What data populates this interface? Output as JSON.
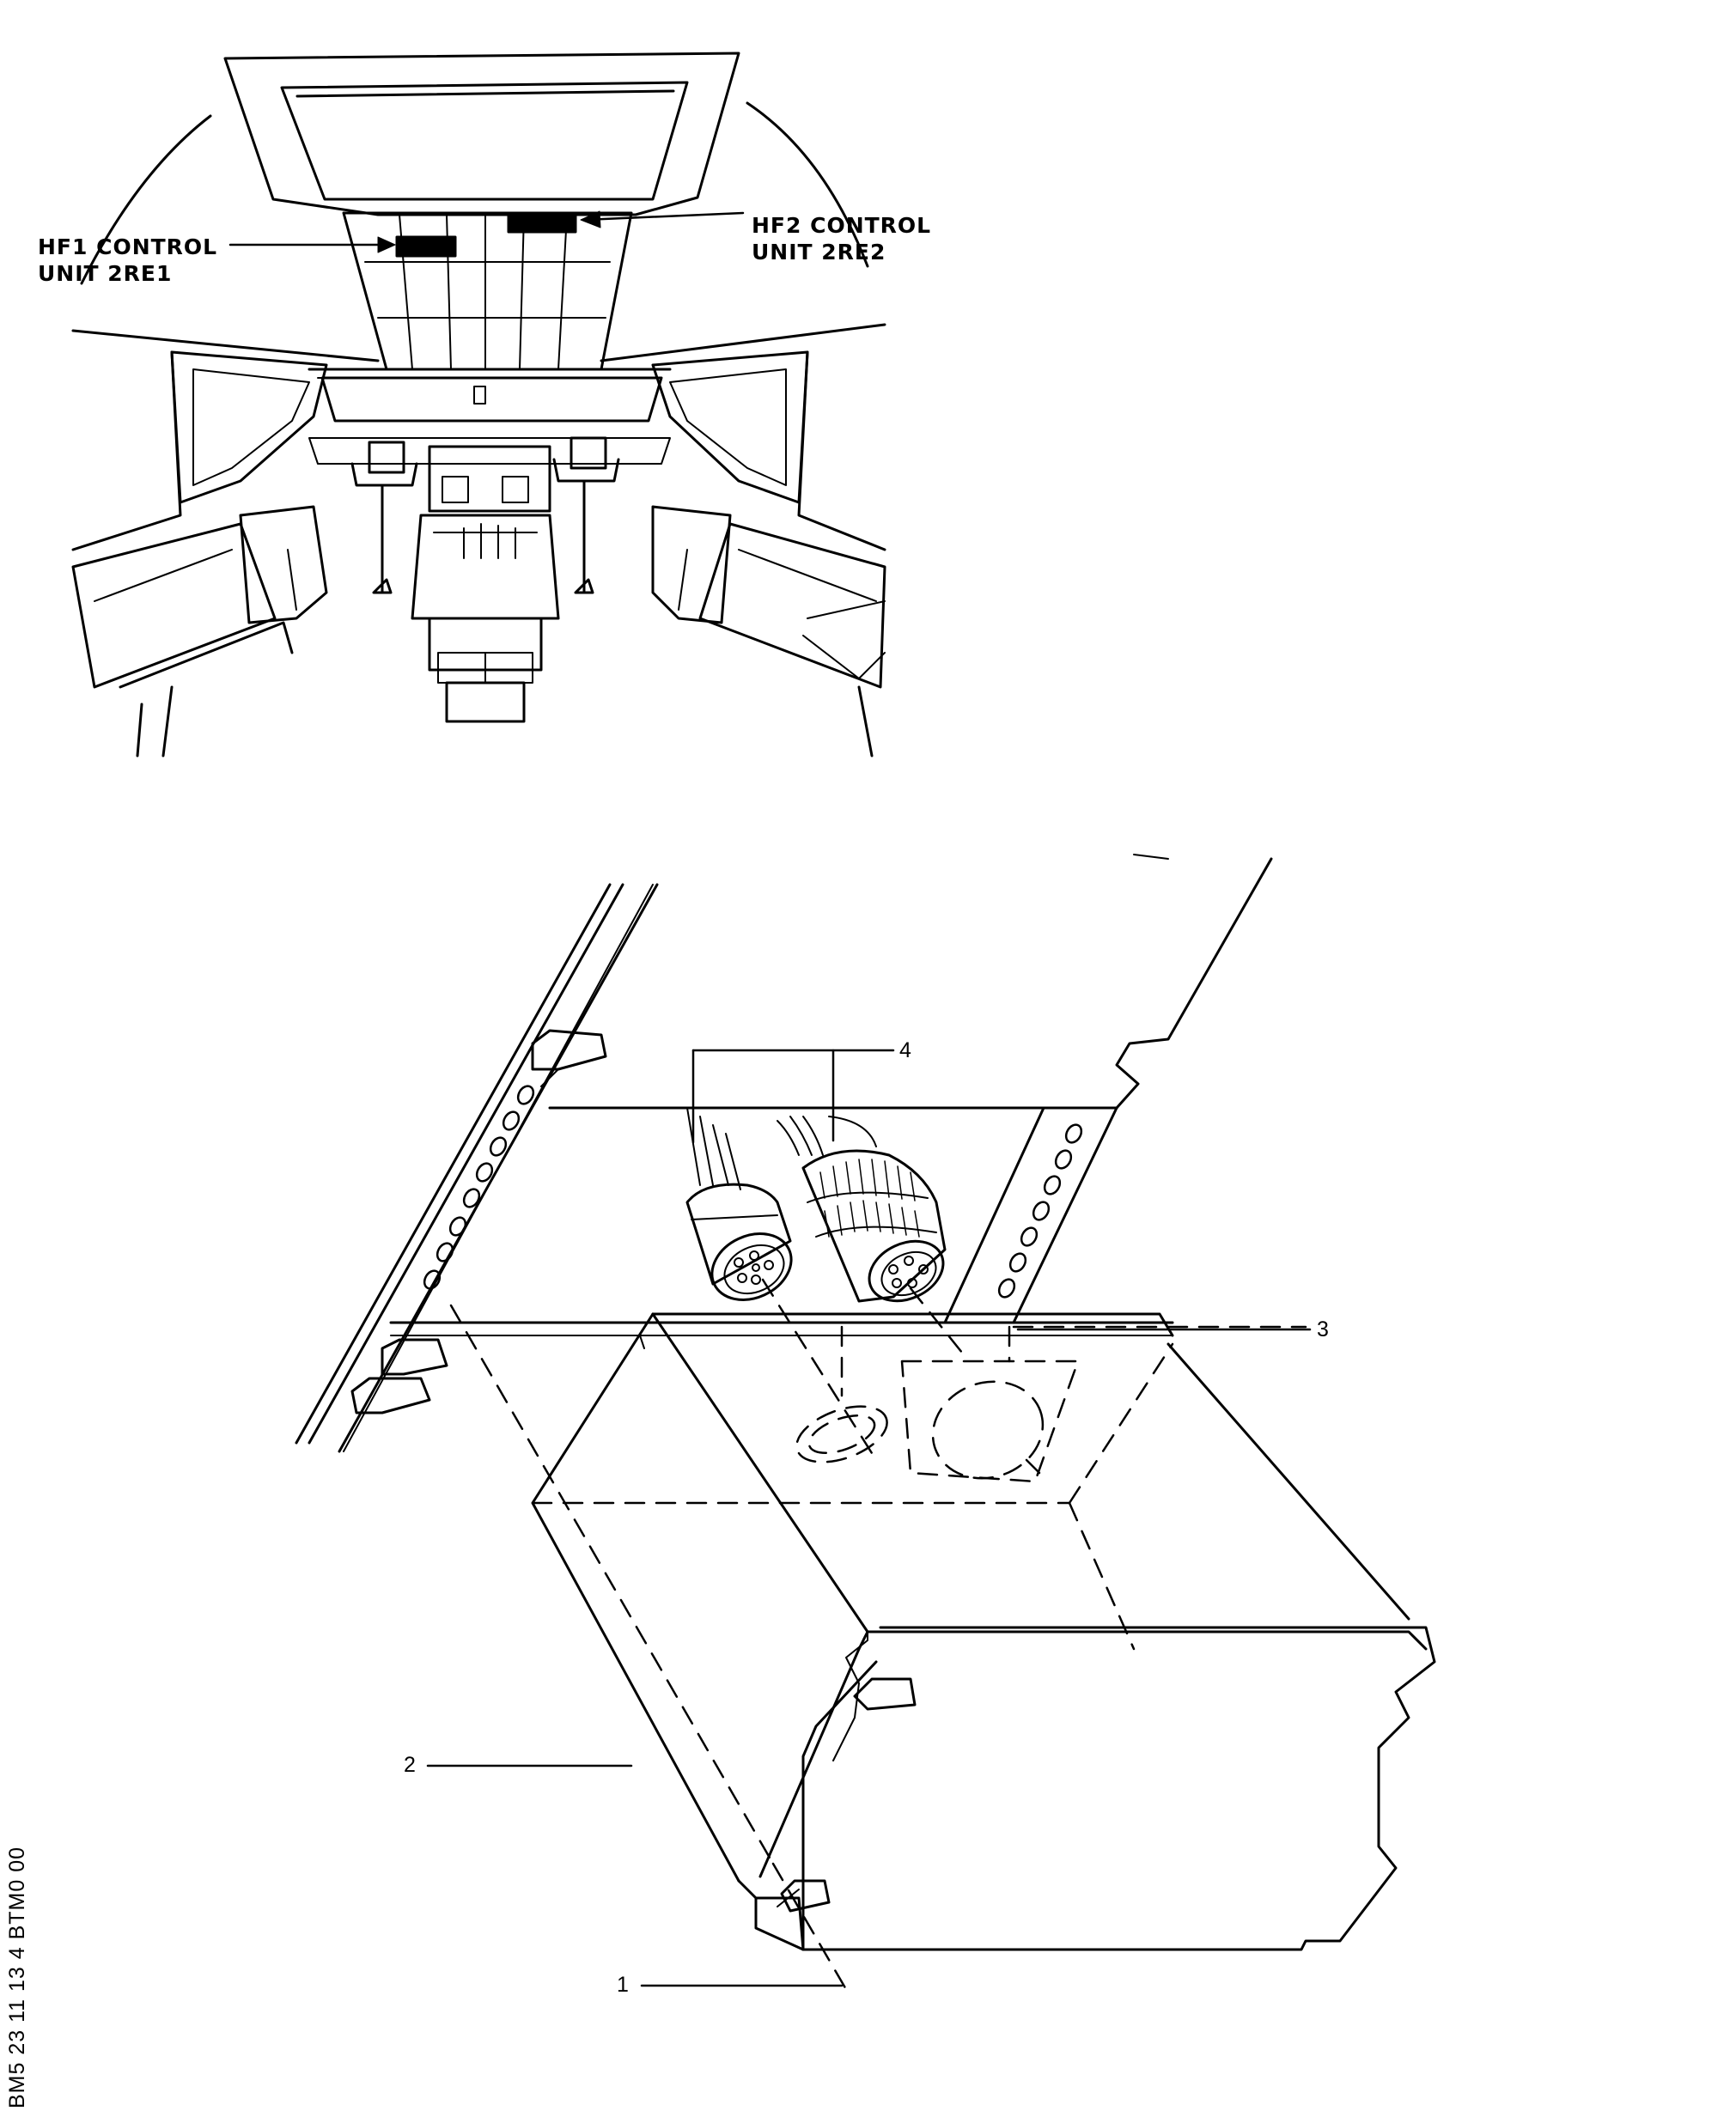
{
  "cockpit_view": {
    "hf1_label_line1": "HF1 CONTROL",
    "hf1_label_line2": "UNIT 2RE1",
    "hf2_label_line1": "HF2 CONTROL",
    "hf2_label_line2": "UNIT 2RE2"
  },
  "detail_view": {
    "callout_1": "1",
    "callout_2": "2",
    "callout_3": "3",
    "callout_4": "4"
  },
  "figure_code": "BM5 23 11 13 4 BTM0 00",
  "colors": {
    "ink": "#000000",
    "paper": "#ffffff"
  }
}
